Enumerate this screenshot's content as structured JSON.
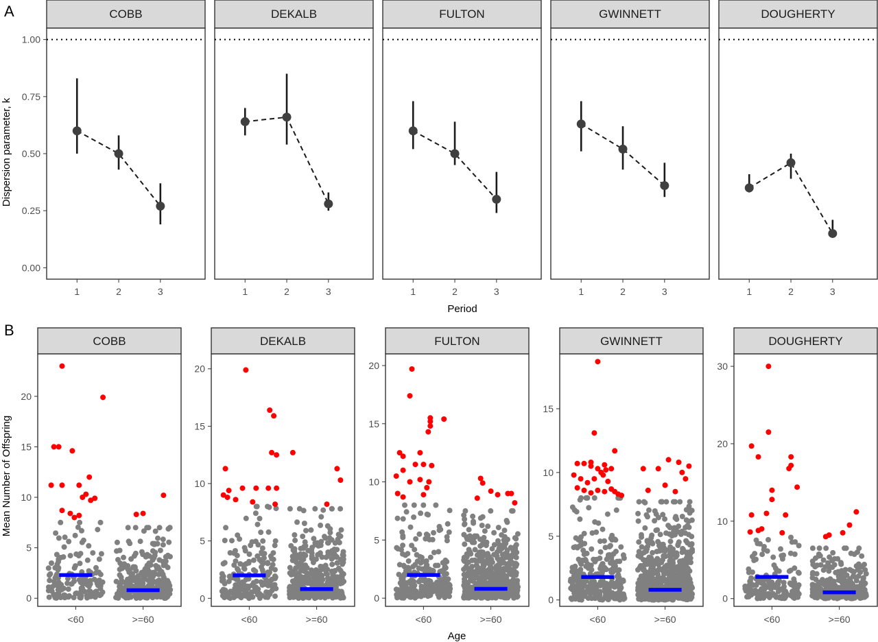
{
  "colors": {
    "point": "#404040",
    "errorbar": "#1a1a1a",
    "dashed": "#1a1a1a",
    "gray_points": "#808080",
    "red_points": "#ff0000",
    "mean_bar": "#0000ff",
    "strip_fill": "#d9d9d9"
  },
  "chart_data": [
    {
      "tag": "A",
      "type": "line",
      "xlabel": "Period",
      "ylabel": "Dispersion parameter, k",
      "ylim": [
        -0.05,
        1.05
      ],
      "yticks": [
        "0.00",
        "0.25",
        "0.50",
        "0.75",
        "1.00"
      ],
      "xticks": [
        "1",
        "2",
        "3"
      ],
      "reference_line": 1.0,
      "panels": [
        {
          "county": "COBB",
          "values": [
            0.6,
            0.5,
            0.27
          ],
          "lower": [
            0.5,
            0.43,
            0.19
          ],
          "upper": [
            0.83,
            0.58,
            0.37
          ]
        },
        {
          "county": "DEKALB",
          "values": [
            0.64,
            0.66,
            0.28
          ],
          "lower": [
            0.58,
            0.54,
            0.25
          ],
          "upper": [
            0.7,
            0.85,
            0.33
          ]
        },
        {
          "county": "FULTON",
          "values": [
            0.6,
            0.5,
            0.3
          ],
          "lower": [
            0.52,
            0.45,
            0.24
          ],
          "upper": [
            0.73,
            0.64,
            0.42
          ]
        },
        {
          "county": "GWINNETT",
          "values": [
            0.63,
            0.52,
            0.36
          ],
          "lower": [
            0.51,
            0.43,
            0.31
          ],
          "upper": [
            0.73,
            0.62,
            0.46
          ]
        },
        {
          "county": "DOUGHERTY",
          "values": [
            0.35,
            0.46,
            0.15
          ],
          "lower": [
            0.33,
            0.39,
            0.14
          ],
          "upper": [
            0.41,
            0.5,
            0.21
          ]
        }
      ]
    },
    {
      "tag": "B",
      "type": "scatter",
      "xlabel": "Age",
      "ylabel": "Mean Number of Offspring",
      "categories": [
        "<60",
        ">=60"
      ],
      "panels": [
        {
          "county": "COBB",
          "ylim": [
            -0.8,
            24.2
          ],
          "yticks": [
            0,
            5,
            10,
            15,
            20
          ],
          "mean": [
            2.3,
            0.8
          ],
          "gray_n": [
            150,
            320
          ],
          "gray_max": [
            7.5,
            7.0
          ],
          "red": [
            [
              [
                -0.2,
                23.0
              ],
              [
                0.4,
                19.9
              ],
              [
                -0.25,
                15.0
              ],
              [
                -0.32,
                15.0
              ],
              [
                -0.05,
                14.6
              ],
              [
                0.2,
                12.0
              ],
              [
                -0.36,
                11.2
              ],
              [
                -0.2,
                11.2
              ],
              [
                0.05,
                11.2
              ],
              [
                0.15,
                10.3
              ],
              [
                0.28,
                9.9
              ],
              [
                0.1,
                10.0
              ],
              [
                0.22,
                9.7
              ],
              [
                -0.2,
                8.7
              ],
              [
                -0.08,
                8.4
              ],
              [
                -0.02,
                8.0
              ],
              [
                0.05,
                8.2
              ]
            ],
            [
              [
                -0.1,
                8.3
              ],
              [
                0.0,
                8.4
              ],
              [
                0.3,
                10.2
              ]
            ]
          ]
        },
        {
          "county": "DEKALB",
          "ylim": [
            -0.7,
            21.3
          ],
          "yticks": [
            0,
            5,
            10,
            15,
            20
          ],
          "mean": [
            2.0,
            0.8
          ],
          "gray_n": [
            200,
            400
          ],
          "gray_max": [
            8.0,
            7.8
          ],
          "red": [
            [
              [
                -0.05,
                19.9
              ],
              [
                0.3,
                16.4
              ],
              [
                0.36,
                15.9
              ],
              [
                0.33,
                12.7
              ],
              [
                0.4,
                12.5
              ],
              [
                -0.35,
                11.3
              ],
              [
                -0.38,
                9.0
              ],
              [
                -0.3,
                9.4
              ],
              [
                -0.1,
                9.6
              ],
              [
                0.1,
                9.6
              ],
              [
                0.28,
                9.6
              ],
              [
                0.4,
                9.6
              ],
              [
                -0.32,
                8.8
              ],
              [
                -0.2,
                8.6
              ],
              [
                0.05,
                8.4
              ],
              [
                0.38,
                8.2
              ]
            ],
            [
              [
                -0.35,
                12.7
              ],
              [
                0.3,
                11.3
              ],
              [
                0.35,
                10.3
              ],
              [
                0.15,
                8.2
              ]
            ]
          ]
        },
        {
          "county": "FULTON",
          "ylim": [
            -0.7,
            21.0
          ],
          "yticks": [
            0,
            5,
            10,
            15,
            20
          ],
          "mean": [
            2.0,
            0.8
          ],
          "gray_n": [
            250,
            550
          ],
          "gray_max": [
            8.0,
            7.5
          ],
          "red": [
            [
              [
                -0.17,
                19.7
              ],
              [
                -0.2,
                17.4
              ],
              [
                -0.35,
                12.5
              ],
              [
                -0.3,
                12.2
              ],
              [
                0.07,
                14.3
              ],
              [
                0.1,
                15.2
              ],
              [
                0.1,
                15.5
              ],
              [
                0.1,
                14.8
              ],
              [
                0.3,
                15.4
              ],
              [
                -0.05,
                12.5
              ],
              [
                -0.4,
                10.5
              ],
              [
                -0.3,
                11.0
              ],
              [
                -0.2,
                10.0
              ],
              [
                -0.38,
                9.0
              ],
              [
                -0.3,
                8.7
              ],
              [
                -0.12,
                11.5
              ],
              [
                0.0,
                11.5
              ],
              [
                0.12,
                11.4
              ],
              [
                0.08,
                10.0
              ],
              [
                0.05,
                9.5
              ],
              [
                0.0,
                8.9
              ],
              [
                -0.05,
                10.2
              ]
            ],
            [
              [
                -0.15,
                10.3
              ],
              [
                -0.12,
                9.9
              ],
              [
                0.0,
                9.2
              ],
              [
                0.1,
                8.9
              ],
              [
                0.25,
                9.0
              ],
              [
                0.3,
                9.0
              ],
              [
                0.35,
                8.2
              ],
              [
                -0.2,
                8.6
              ]
            ]
          ]
        },
        {
          "county": "GWINNETT",
          "ylim": [
            -0.5,
            19.3
          ],
          "yticks": [
            0,
            5,
            10,
            15
          ],
          "mean": [
            1.8,
            0.8
          ],
          "gray_n": [
            300,
            600
          ],
          "gray_max": [
            8.0,
            7.7
          ],
          "red": [
            [
              [
                0.0,
                18.7
              ],
              [
                -0.05,
                13.1
              ],
              [
                0.25,
                11.7
              ],
              [
                -0.3,
                10.7
              ],
              [
                -0.2,
                10.7
              ],
              [
                -0.1,
                10.5
              ],
              [
                0.0,
                10.3
              ],
              [
                0.05,
                10.0
              ],
              [
                0.12,
                10.2
              ],
              [
                0.2,
                10.3
              ],
              [
                -0.35,
                9.8
              ],
              [
                -0.25,
                9.5
              ],
              [
                -0.15,
                9.2
              ],
              [
                -0.05,
                9.5
              ],
              [
                0.08,
                9.8
              ],
              [
                0.15,
                9.3
              ],
              [
                -0.3,
                8.8
              ],
              [
                -0.2,
                8.6
              ],
              [
                -0.1,
                8.4
              ],
              [
                0.0,
                8.6
              ],
              [
                0.1,
                8.5
              ],
              [
                0.2,
                8.7
              ],
              [
                0.3,
                8.3
              ],
              [
                0.35,
                8.2
              ],
              [
                0.25,
                8.5
              ],
              [
                -0.1,
                10.8
              ],
              [
                0.1,
                10.6
              ]
            ],
            [
              [
                -0.32,
                10.3
              ],
              [
                0.05,
                11.0
              ],
              [
                0.2,
                10.8
              ],
              [
                0.35,
                10.5
              ],
              [
                -0.1,
                10.3
              ],
              [
                0.25,
                10.0
              ],
              [
                0.3,
                9.5
              ],
              [
                0.0,
                9.0
              ],
              [
                -0.25,
                8.6
              ],
              [
                0.15,
                8.5
              ]
            ]
          ]
        },
        {
          "county": "DOUGHERTY",
          "ylim": [
            -1.0,
            31.6
          ],
          "yticks": [
            0,
            10,
            20,
            30
          ],
          "mean": [
            2.8,
            0.8
          ],
          "gray_n": [
            150,
            300
          ],
          "gray_max": [
            8.0,
            6.5
          ],
          "red": [
            [
              [
                -0.05,
                30.0
              ],
              [
                -0.3,
                19.7
              ],
              [
                -0.05,
                21.5
              ],
              [
                -0.2,
                18.3
              ],
              [
                0.28,
                18.3
              ],
              [
                0.28,
                17.2
              ],
              [
                0.25,
                16.8
              ],
              [
                0.37,
                14.4
              ],
              [
                0.0,
                14.0
              ],
              [
                0.0,
                12.8
              ],
              [
                -0.08,
                11.0
              ],
              [
                -0.3,
                10.8
              ],
              [
                0.2,
                10.8
              ],
              [
                -0.15,
                9.0
              ],
              [
                -0.2,
                8.8
              ],
              [
                -0.32,
                8.6
              ],
              [
                0.15,
                8.5
              ]
            ],
            [
              [
                0.25,
                11.2
              ],
              [
                0.15,
                9.5
              ],
              [
                0.05,
                8.5
              ],
              [
                -0.2,
                8.0
              ],
              [
                -0.15,
                8.2
              ]
            ]
          ]
        }
      ]
    }
  ]
}
